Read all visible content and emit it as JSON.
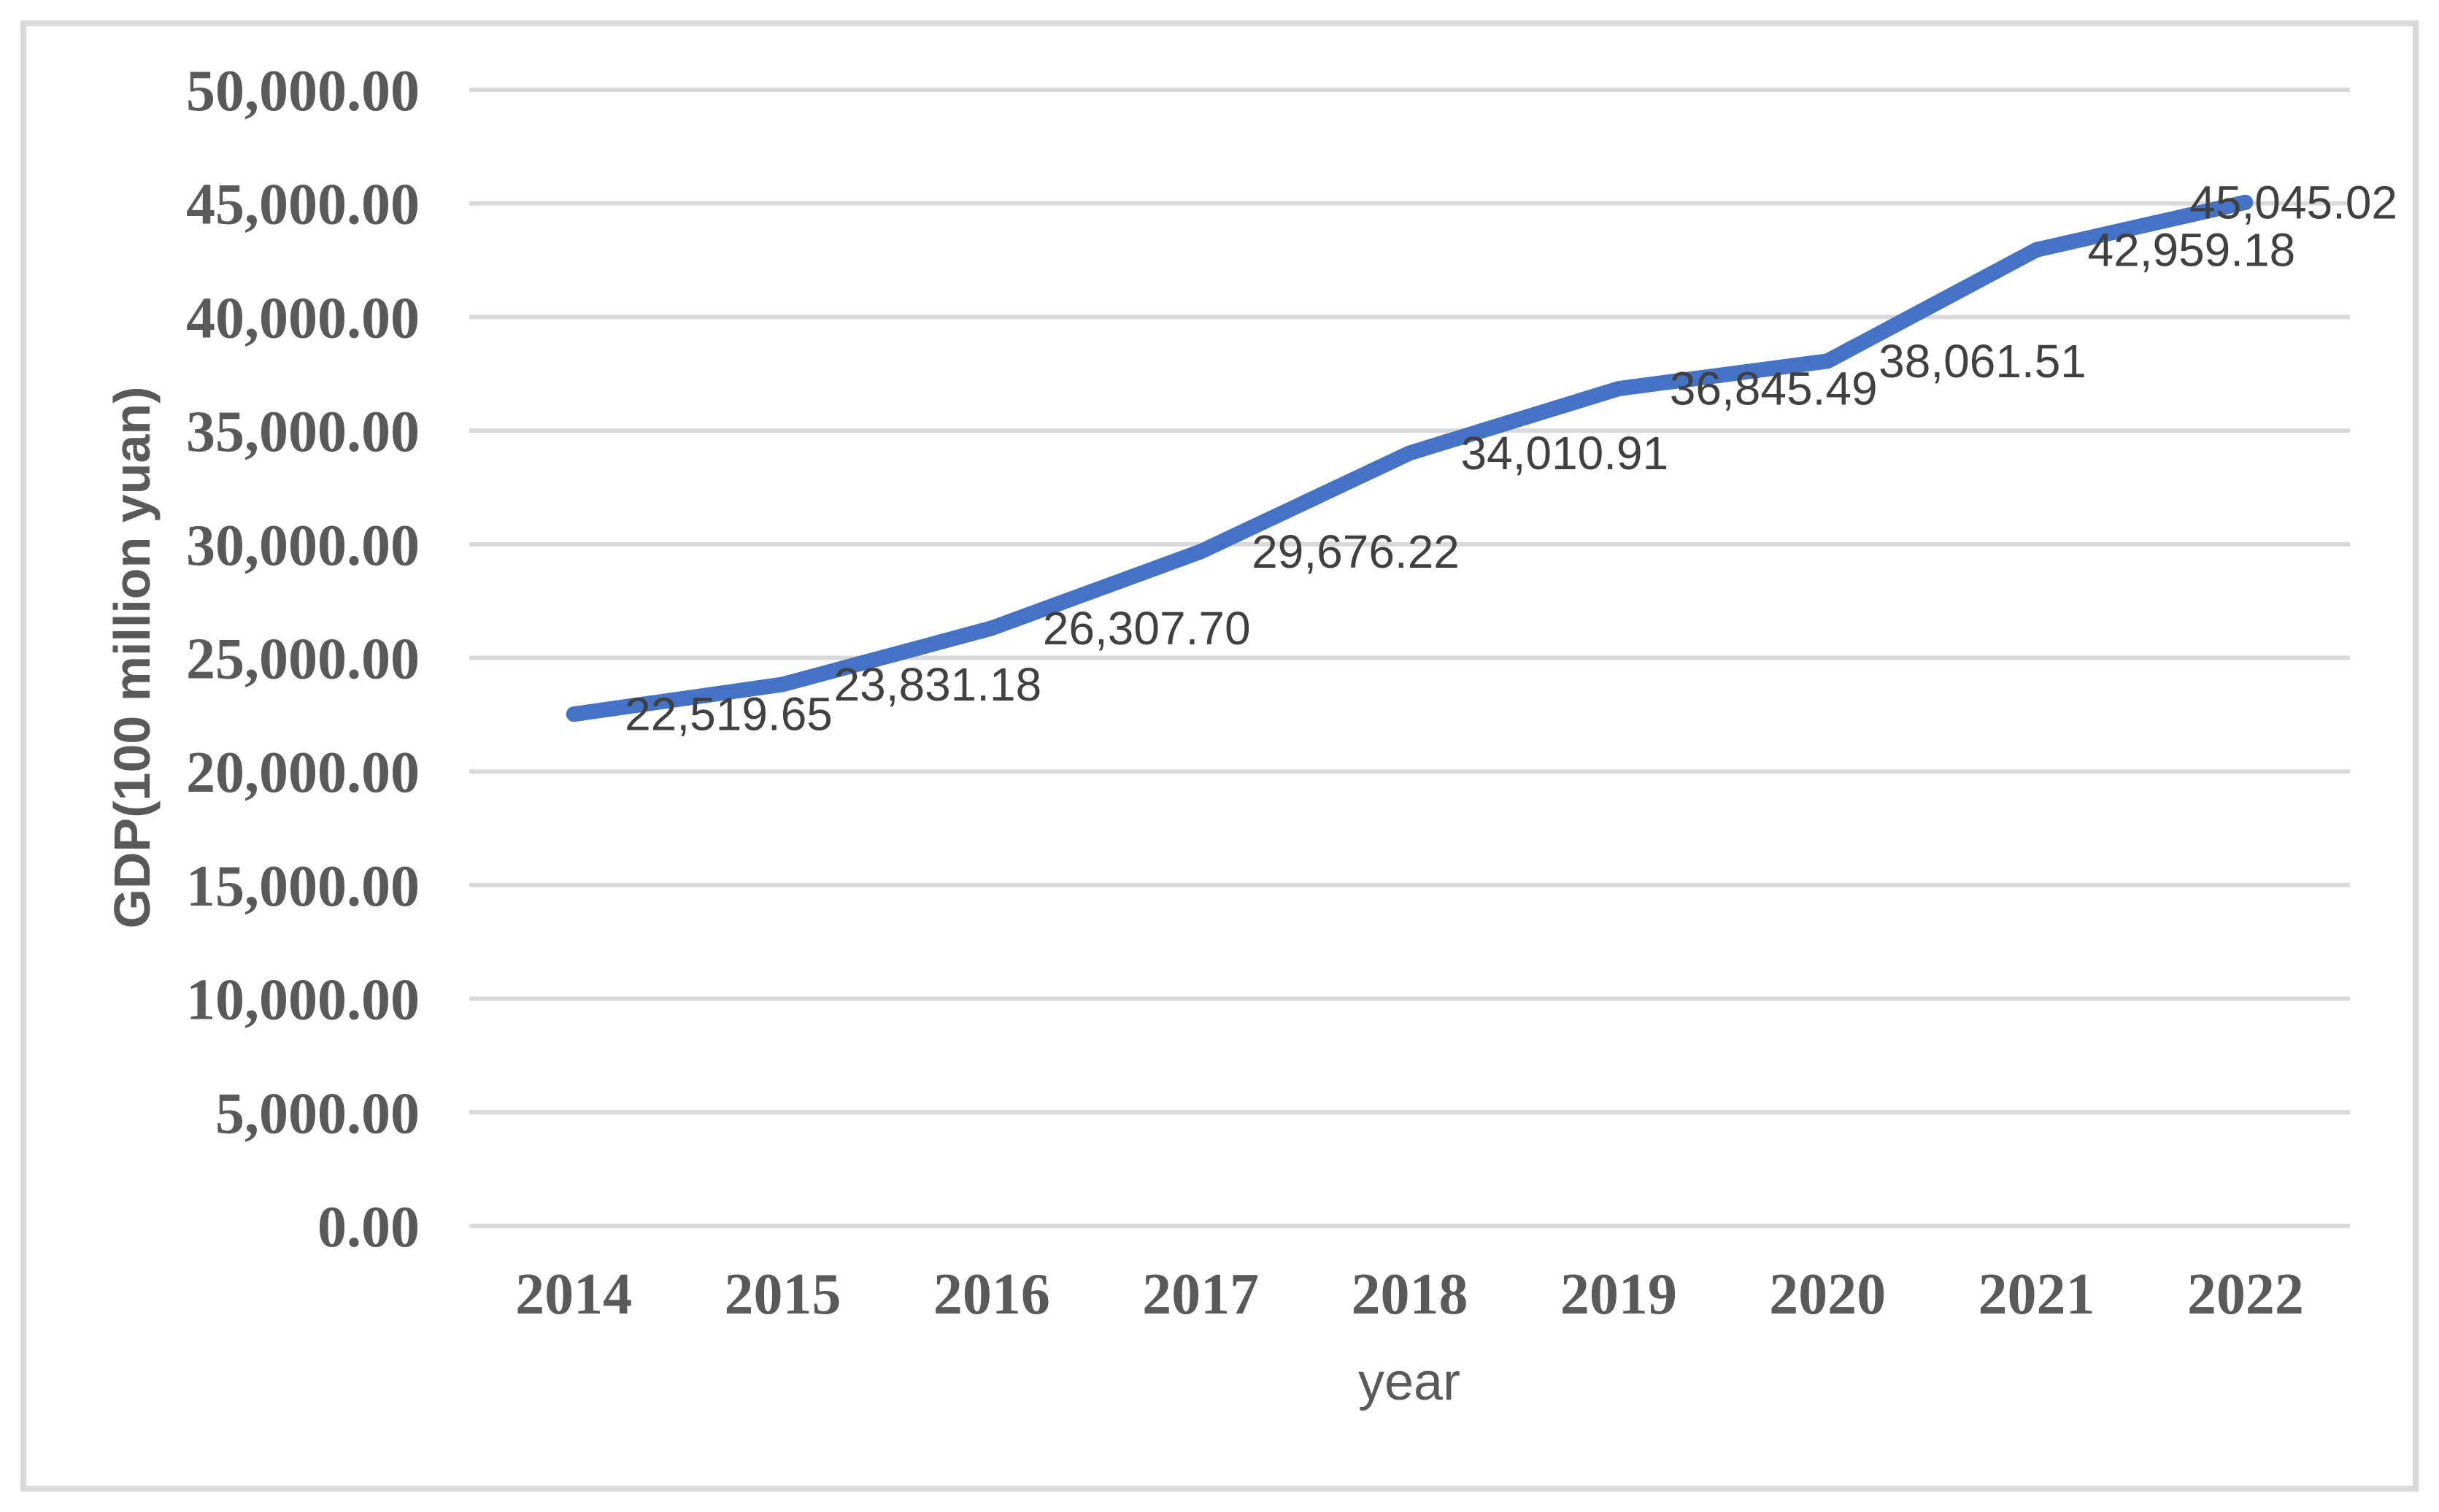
{
  "chart_data": {
    "type": "line",
    "title": "",
    "xlabel": "year",
    "ylabel": "GDP(100 million yuan)",
    "categories": [
      "2014",
      "2015",
      "2016",
      "2017",
      "2018",
      "2019",
      "2020",
      "2021",
      "2022"
    ],
    "series": [
      {
        "name": "GDP",
        "values": [
          22519.65,
          23831.18,
          26307.7,
          29676.22,
          34010.91,
          36845.49,
          38061.51,
          42959.18,
          45045.02
        ],
        "data_labels": [
          "22,519.65",
          "23,831.18",
          "26,307.70",
          "29,676.22",
          "34,010.91",
          "36,845.49",
          "38,061.51",
          "42,959.18",
          "45,045.02"
        ]
      }
    ],
    "ylim": [
      0,
      50000
    ],
    "ytick_step": 5000,
    "ytick_labels": [
      "0.00",
      "5,000.00",
      "10,000.00",
      "15,000.00",
      "20,000.00",
      "25,000.00",
      "30,000.00",
      "35,000.00",
      "40,000.00",
      "45,000.00",
      "50,000.00"
    ],
    "grid": "horizontal",
    "legend_position": "none",
    "colors": {
      "line": "#4472C4",
      "gridline": "#D9D9D9",
      "border": "#D9D9D9",
      "tick_text": "#595959",
      "data_label_text": "#404040"
    }
  }
}
